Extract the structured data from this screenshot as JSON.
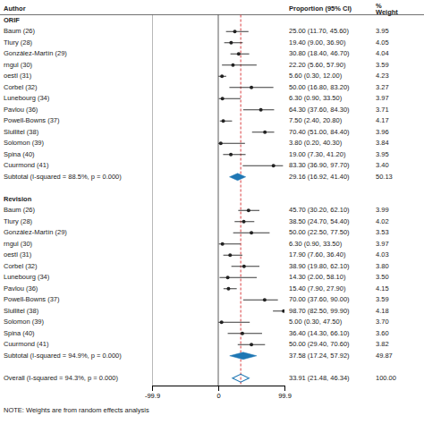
{
  "chart_data": {
    "type": "forest",
    "xlim": [
      -99.9,
      99.9
    ],
    "xticks": [
      -99.9,
      0,
      99.9
    ],
    "null_line": 0,
    "reference_line": 33.91,
    "headers": {
      "author": "Author",
      "estimate": "Proportion (95% CI)",
      "weight": [
        "%",
        "Weight"
      ]
    },
    "note": "NOTE: Weights are from random effects analysis",
    "groups": [
      {
        "name": "ORIF",
        "studies": [
          {
            "author": "Baum (26)",
            "es": 25.0,
            "lo": 11.7,
            "hi": 45.6,
            "wt": "3.95",
            "label": "25.00 (11.70, 45.60)"
          },
          {
            "author": "Tlury (28)",
            "es": 19.4,
            "lo": 9.0,
            "hi": 36.9,
            "wt": "4.05",
            "label": "19.40 (9.00, 36.90)"
          },
          {
            "author": "González-Martín (29)",
            "es": 30.8,
            "lo": 18.4,
            "hi": 46.7,
            "wt": "4.04",
            "label": "30.80 (18.40, 46.70)"
          },
          {
            "author": "rngul (30)",
            "es": 22.2,
            "lo": 5.6,
            "hi": 57.9,
            "wt": "3.59",
            "label": "22.20 (5.60, 57.90)"
          },
          {
            "author": "oestl (31)",
            "es": 5.6,
            "lo": 0.3,
            "hi": 12.0,
            "wt": "4.23",
            "label": "5.60 (0.30, 12.00)"
          },
          {
            "author": "Corbel (32)",
            "es": 50.0,
            "lo": 16.8,
            "hi": 83.2,
            "wt": "3.27",
            "label": "50.00 (16.80, 83.20)"
          },
          {
            "author": "Lunebourg (34)",
            "es": 6.3,
            "lo": 0.9,
            "hi": 33.5,
            "wt": "3.97",
            "label": "6.30 (0.90, 33.50)"
          },
          {
            "author": "Pavlou (36)",
            "es": 64.3,
            "lo": 37.6,
            "hi": 84.3,
            "wt": "3.71",
            "label": "64.30 (37.60, 84.30)"
          },
          {
            "author": "Powell-Bowns (37)",
            "es": 7.5,
            "lo": 2.4,
            "hi": 20.8,
            "wt": "4.17",
            "label": "7.50 (2.40, 20.80)"
          },
          {
            "author": "Slullitel (38)",
            "es": 70.4,
            "lo": 51.0,
            "hi": 84.4,
            "wt": "3.96",
            "label": "70.40 (51.00, 84.40)"
          },
          {
            "author": "Solomon (39)",
            "es": 3.8,
            "lo": 0.2,
            "hi": 40.3,
            "wt": "3.84",
            "label": "3.80 (0.20, 40.30)"
          },
          {
            "author": "Spina (40)",
            "es": 19.0,
            "lo": 7.3,
            "hi": 41.2,
            "wt": "3.95",
            "label": "19.00 (7.30, 41.20)"
          },
          {
            "author": "Cuurmond (41)",
            "es": 83.3,
            "lo": 36.9,
            "hi": 97.7,
            "wt": "3.40",
            "label": "83.30 (36.90, 97.70)"
          }
        ],
        "subtotal": {
          "es": 29.16,
          "lo": 16.92,
          "hi": 41.4,
          "wt": "50.13",
          "label": "29.16 (16.92, 41.40)",
          "text": "Subtotal (I-squared = 88.5%, p = 0.000)"
        }
      },
      {
        "name": "Revision",
        "studies": [
          {
            "author": "Baum (26)",
            "es": 45.7,
            "lo": 30.2,
            "hi": 62.1,
            "wt": "3.99",
            "label": "45.70 (30.20, 62.10)"
          },
          {
            "author": "Tlury (28)",
            "es": 38.5,
            "lo": 24.7,
            "hi": 54.4,
            "wt": "4.02",
            "label": "38.50 (24.70, 54.40)"
          },
          {
            "author": "González-Martín (29)",
            "es": 50.0,
            "lo": 22.5,
            "hi": 77.5,
            "wt": "3.53",
            "label": "50.00 (22.50, 77.50)"
          },
          {
            "author": "rngul (30)",
            "es": 6.3,
            "lo": 0.9,
            "hi": 33.5,
            "wt": "3.97",
            "label": "6.30 (0.90, 33.50)"
          },
          {
            "author": "oestl (31)",
            "es": 17.9,
            "lo": 7.6,
            "hi": 36.4,
            "wt": "4.03",
            "label": "17.90 (7.60, 36.40)"
          },
          {
            "author": "Corbel (32)",
            "es": 38.9,
            "lo": 19.8,
            "hi": 62.1,
            "wt": "3.80",
            "label": "38.90 (19.80, 62.10)"
          },
          {
            "author": "Lunebourg (34)",
            "es": 14.3,
            "lo": 2.0,
            "hi": 58.1,
            "wt": "3.50",
            "label": "14.30 (2.00, 58.10)"
          },
          {
            "author": "Pavlou (36)",
            "es": 15.4,
            "lo": 7.9,
            "hi": 27.9,
            "wt": "4.15",
            "label": "15.40 (7.90, 27.90)"
          },
          {
            "author": "Powell-Bowns (37)",
            "es": 70.0,
            "lo": 37.6,
            "hi": 90.0,
            "wt": "3.59",
            "label": "70.00 (37.60, 90.00)"
          },
          {
            "author": "Slullitel (38)",
            "es": 98.7,
            "lo": 82.5,
            "hi": 99.9,
            "wt": "4.18",
            "label": "98.70 (82.50, 99.90)"
          },
          {
            "author": "Solomon (39)",
            "es": 5.0,
            "lo": 0.3,
            "hi": 47.5,
            "wt": "3.70",
            "label": "5.00 (0.30, 47.50)"
          },
          {
            "author": "Spina (40)",
            "es": 36.4,
            "lo": 14.3,
            "hi": 66.1,
            "wt": "3.60",
            "label": "36.40 (14.30, 66.10)"
          },
          {
            "author": "Cuurmond (41)",
            "es": 50.0,
            "lo": 29.4,
            "hi": 70.6,
            "wt": "3.82",
            "label": "50.00 (29.40, 70.60)"
          }
        ],
        "subtotal": {
          "es": 37.58,
          "lo": 17.24,
          "hi": 57.92,
          "wt": "49.87",
          "label": "37.58 (17.24, 57.92)",
          "text": "Subtotal (I-squared = 94.9%, p = 0.000)"
        }
      }
    ],
    "overall": {
      "es": 33.91,
      "lo": 21.48,
      "hi": 46.34,
      "wt": "100.00",
      "label": "33.91 (21.48, 46.34)",
      "text": "Overall  (I-squared = 94.3%, p = 0.000)"
    }
  }
}
